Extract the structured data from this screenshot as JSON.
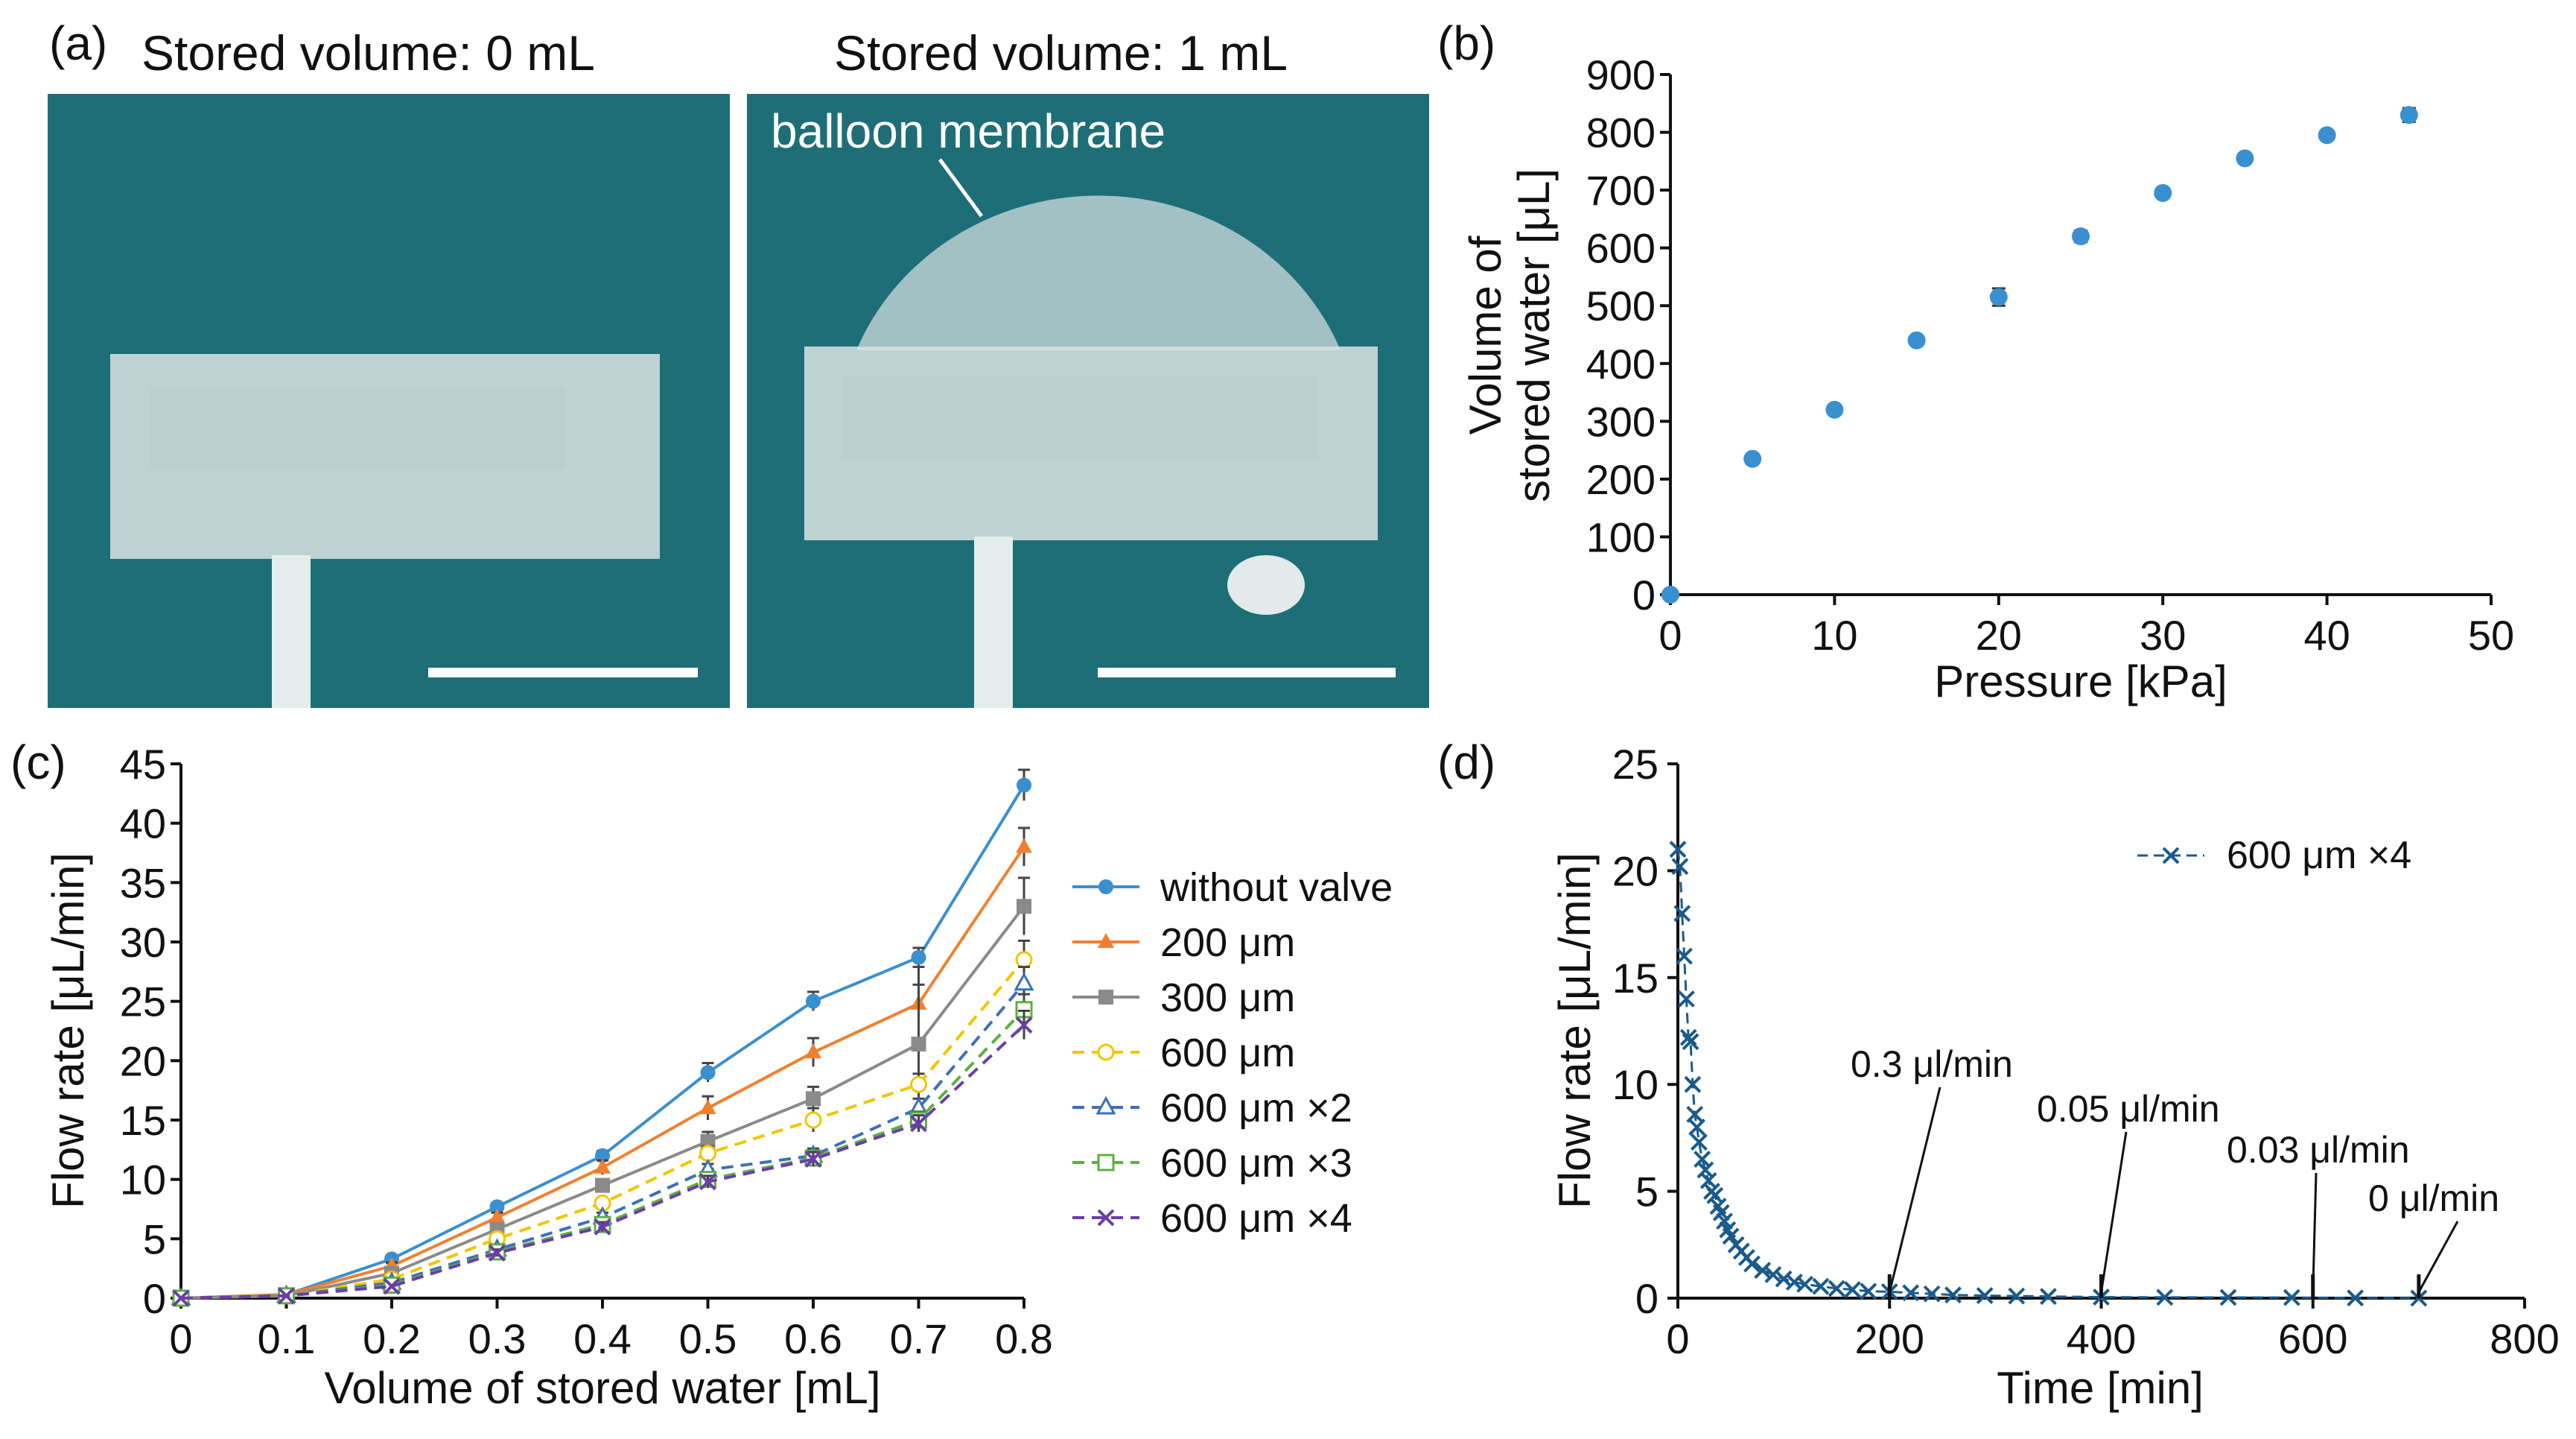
{
  "figure": {
    "panel_a": {
      "label": "(a)",
      "left_title": "Stored volume: 0 mL",
      "right_title": "Stored volume: 1 mL",
      "annotation": "balloon membrane"
    },
    "panel_b_label": "(b)",
    "panel_c_label": "(c)",
    "panel_d_label": "(d)"
  },
  "colors": {
    "photo_background": "#1e6e78",
    "without_valve": "#3a8fd0",
    "200um": "#f08030",
    "300um": "#8a8a8a",
    "600um": "#f2c500",
    "600um_x2": "#3d6fb8",
    "600um_x3": "#5cb040",
    "600um_x4": "#6a3ea8",
    "panel_d_series": "#1a5a8c"
  },
  "chart_data": [
    {
      "panel": "b",
      "type": "scatter",
      "xlabel": "Pressure [kPa]",
      "ylabel_line1": "Volume of",
      "ylabel_line2": "stored water [μL]",
      "xlim": [
        0,
        50
      ],
      "ylim": [
        0,
        900
      ],
      "x_ticks": [
        "0",
        "10",
        "20",
        "30",
        "40",
        "50"
      ],
      "y_ticks": [
        "0",
        "100",
        "200",
        "300",
        "400",
        "500",
        "600",
        "700",
        "800",
        "900"
      ],
      "grid": false,
      "series": [
        {
          "x": [
            0,
            5,
            10,
            15,
            20,
            25,
            30,
            35,
            40,
            45
          ],
          "y": [
            0,
            235,
            320,
            440,
            515,
            620,
            695,
            755,
            795,
            830
          ],
          "err": [
            0,
            5,
            6,
            8,
            15,
            10,
            8,
            8,
            8,
            12
          ]
        }
      ]
    },
    {
      "panel": "c",
      "type": "line",
      "xlabel": "Volume of stored water [mL]",
      "ylabel": "Flow rate [μL/min]",
      "xlim": [
        0,
        0.8
      ],
      "ylim": [
        0,
        45
      ],
      "x_ticks": [
        "0",
        "0.1",
        "0.2",
        "0.3",
        "0.4",
        "0.5",
        "0.6",
        "0.7",
        "0.8"
      ],
      "y_ticks": [
        "0",
        "5",
        "10",
        "15",
        "20",
        "25",
        "30",
        "35",
        "40",
        "45"
      ],
      "legend_position": "right",
      "x": [
        0,
        0.1,
        0.2,
        0.3,
        0.4,
        0.5,
        0.6,
        0.7,
        0.8
      ],
      "series": [
        {
          "name": "without valve",
          "marker": "circle-filled",
          "dashed": false,
          "values": [
            0,
            0.3,
            3.3,
            7.7,
            12,
            19,
            25,
            28.7,
            43.2
          ],
          "err": [
            0,
            0.2,
            0.3,
            0.3,
            0.4,
            0.8,
            0.8,
            0.8,
            1.3
          ]
        },
        {
          "name": "200 μm",
          "marker": "triangle-filled",
          "dashed": false,
          "values": [
            0,
            0.3,
            2.7,
            6.8,
            11,
            16,
            20.7,
            24.8,
            38
          ],
          "err": [
            0,
            0.2,
            0.3,
            0.4,
            0.6,
            1.0,
            1.2,
            1.6,
            1.6
          ]
        },
        {
          "name": "300 μm",
          "marker": "square-filled",
          "dashed": false,
          "values": [
            0,
            0.2,
            2.1,
            5.8,
            9.5,
            13.2,
            16.8,
            21.4,
            33
          ],
          "err": [
            0,
            0.2,
            0.3,
            0.4,
            0.5,
            0.8,
            1.0,
            6.5,
            2.4
          ]
        },
        {
          "name": "600 μm",
          "marker": "circle-open",
          "dashed": true,
          "values": [
            0,
            0.2,
            1.6,
            5.0,
            8.0,
            12.2,
            15.0,
            18.0,
            28.5
          ],
          "err": [
            0,
            0.1,
            0.2,
            0.3,
            0.4,
            0.6,
            1.0,
            0.9,
            1.6
          ]
        },
        {
          "name": "600 μm ×2",
          "marker": "triangle-open",
          "dashed": true,
          "values": [
            0,
            0.2,
            1.3,
            4.1,
            6.8,
            10.8,
            12.0,
            16.0,
            26.5
          ],
          "err": [
            0,
            0.1,
            0.2,
            0.3,
            0.4,
            0.5,
            0.6,
            0.8,
            1.4
          ]
        },
        {
          "name": "600 μm ×3",
          "marker": "square-open",
          "dashed": true,
          "values": [
            0,
            0.2,
            1.1,
            3.9,
            6.2,
            10.0,
            11.8,
            15.0,
            24.3
          ],
          "err": [
            0,
            0.1,
            0.2,
            0.3,
            0.4,
            0.5,
            0.6,
            0.7,
            1.3
          ]
        },
        {
          "name": "600 μm ×4",
          "marker": "x",
          "dashed": true,
          "values": [
            0,
            0.2,
            1.0,
            3.8,
            6.0,
            9.8,
            11.7,
            14.7,
            23.0
          ],
          "err": [
            0,
            0.1,
            0.2,
            0.3,
            0.4,
            0.5,
            0.6,
            0.7,
            1.2
          ]
        }
      ]
    },
    {
      "panel": "d",
      "type": "scatter",
      "xlabel": "Time [min]",
      "ylabel": "Flow rate [μL/min]",
      "xlim": [
        0,
        800
      ],
      "ylim": [
        0,
        25
      ],
      "x_ticks": [
        "0",
        "200",
        "400",
        "600",
        "800"
      ],
      "y_ticks": [
        "0",
        "5",
        "10",
        "15",
        "20",
        "25"
      ],
      "legend_position": "top-right",
      "series": [
        {
          "name": "600 μm ×4",
          "marker": "x",
          "dashed": true,
          "x": [
            0,
            2,
            4,
            6,
            8,
            10,
            12,
            14,
            16,
            18,
            20,
            23,
            26,
            29,
            32,
            35,
            38,
            41,
            44,
            47,
            50,
            55,
            60,
            65,
            70,
            80,
            90,
            100,
            110,
            120,
            135,
            150,
            165,
            180,
            200,
            220,
            240,
            260,
            290,
            320,
            350,
            400,
            460,
            520,
            580,
            640,
            700
          ],
          "y": [
            21,
            20.2,
            18,
            16,
            14,
            12.2,
            12,
            10,
            8.6,
            8,
            7.3,
            6.5,
            6.0,
            5.5,
            5.0,
            4.8,
            4.3,
            4.0,
            3.6,
            3.2,
            2.9,
            2.5,
            2.2,
            1.9,
            1.6,
            1.3,
            1.1,
            0.9,
            0.75,
            0.65,
            0.55,
            0.45,
            0.4,
            0.32,
            0.3,
            0.25,
            0.2,
            0.15,
            0.12,
            0.1,
            0.08,
            0.05,
            0.04,
            0.035,
            0.03,
            0.01,
            0
          ]
        }
      ],
      "annotations": [
        {
          "text": "0.3 μl/min",
          "x": 200
        },
        {
          "text": "0.05 μl/min",
          "x": 400
        },
        {
          "text": "0.03 μl/min",
          "x": 600
        },
        {
          "text": "0 μl/min",
          "x": 700
        }
      ]
    }
  ]
}
